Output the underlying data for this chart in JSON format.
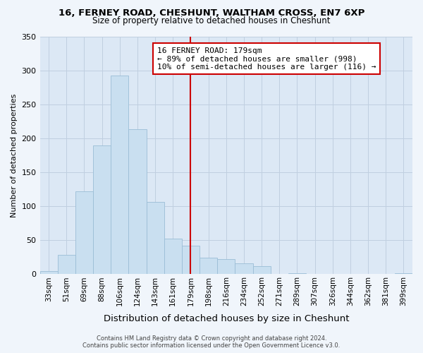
{
  "title1": "16, FERNEY ROAD, CHESHUNT, WALTHAM CROSS, EN7 6XP",
  "title2": "Size of property relative to detached houses in Cheshunt",
  "xlabel": "Distribution of detached houses by size in Cheshunt",
  "ylabel": "Number of detached properties",
  "bar_labels": [
    "33sqm",
    "51sqm",
    "69sqm",
    "88sqm",
    "106sqm",
    "124sqm",
    "143sqm",
    "161sqm",
    "179sqm",
    "198sqm",
    "216sqm",
    "234sqm",
    "252sqm",
    "271sqm",
    "289sqm",
    "307sqm",
    "326sqm",
    "344sqm",
    "362sqm",
    "381sqm",
    "399sqm"
  ],
  "bar_values": [
    5,
    29,
    122,
    190,
    292,
    213,
    106,
    52,
    42,
    24,
    22,
    16,
    12,
    0,
    2,
    0,
    0,
    0,
    0,
    0,
    2
  ],
  "bar_color": "#c9dff0",
  "bar_edge_color": "#9bbdd6",
  "vline_index": 8,
  "vline_color": "#cc0000",
  "annotation_title": "16 FERNEY ROAD: 179sqm",
  "annotation_line1": "← 89% of detached houses are smaller (998)",
  "annotation_line2": "10% of semi-detached houses are larger (116) →",
  "annotation_box_color": "#ffffff",
  "annotation_box_edge": "#cc0000",
  "ylim": [
    0,
    350
  ],
  "yticks": [
    0,
    50,
    100,
    150,
    200,
    250,
    300,
    350
  ],
  "bg_color": "#dce8f5",
  "fig_bg_color": "#f0f5fb",
  "grid_color": "#c0cfe0",
  "footer1": "Contains HM Land Registry data © Crown copyright and database right 2024.",
  "footer2": "Contains public sector information licensed under the Open Government Licence v3.0.",
  "title1_fontsize": 9.5,
  "title2_fontsize": 8.5,
  "ylabel_fontsize": 8.0,
  "xlabel_fontsize": 9.5,
  "tick_fontsize": 7.5,
  "footer_fontsize": 6.0,
  "ann_fontsize": 8.0
}
